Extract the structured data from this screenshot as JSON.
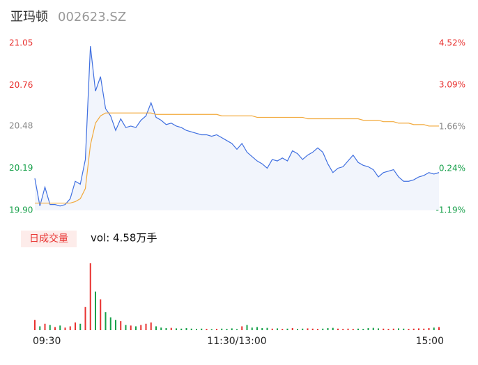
{
  "header": {
    "name": "亚玛顿",
    "code": "002623.SZ"
  },
  "chart_data": [
    {
      "type": "line",
      "x": [
        0,
        3,
        6,
        9,
        12,
        15,
        18,
        21,
        24,
        27,
        30,
        33,
        36,
        39,
        42,
        45,
        48,
        51,
        54,
        57,
        60,
        63,
        66,
        69,
        72,
        75,
        78,
        81,
        84,
        87,
        90,
        93,
        96,
        99,
        102,
        105,
        108,
        111,
        114,
        117,
        120,
        123,
        126,
        129,
        132,
        135,
        138,
        141,
        144,
        147,
        150,
        153,
        156,
        159,
        162,
        165,
        168,
        171,
        174,
        177,
        180,
        183,
        186,
        189,
        192,
        195,
        198,
        201,
        204,
        207,
        210,
        213,
        216,
        219,
        222,
        225,
        228,
        231,
        234,
        237,
        240
      ],
      "series": [
        {
          "color": "#3f6fe0",
          "values": [
            20.12,
            19.93,
            20.06,
            19.94,
            19.94,
            19.93,
            19.94,
            19.98,
            20.1,
            20.08,
            20.25,
            21.03,
            20.72,
            20.82,
            20.6,
            20.55,
            20.45,
            20.53,
            20.47,
            20.48,
            20.47,
            20.52,
            20.55,
            20.64,
            20.54,
            20.52,
            20.49,
            20.5,
            20.48,
            20.47,
            20.45,
            20.44,
            20.43,
            20.42,
            20.42,
            20.41,
            20.42,
            20.4,
            20.38,
            20.36,
            20.32,
            20.36,
            20.3,
            20.27,
            20.24,
            20.22,
            20.19,
            20.25,
            20.24,
            20.26,
            20.24,
            20.31,
            20.29,
            20.25,
            20.28,
            20.3,
            20.33,
            20.3,
            20.22,
            20.16,
            20.19,
            20.2,
            20.24,
            20.28,
            20.23,
            20.21,
            20.2,
            20.18,
            20.13,
            20.16,
            20.17,
            20.18,
            20.13,
            20.1,
            20.1,
            20.11,
            20.13,
            20.14,
            20.16,
            20.15,
            20.16
          ]
        },
        {
          "color": "#f2a93b",
          "values": [
            19.95,
            19.95,
            19.95,
            19.95,
            19.95,
            19.95,
            19.95,
            19.95,
            19.96,
            19.98,
            20.05,
            20.35,
            20.5,
            20.55,
            20.57,
            20.57,
            20.57,
            20.57,
            20.57,
            20.57,
            20.57,
            20.57,
            20.57,
            20.57,
            20.56,
            20.56,
            20.56,
            20.56,
            20.56,
            20.56,
            20.56,
            20.56,
            20.56,
            20.56,
            20.56,
            20.56,
            20.56,
            20.55,
            20.55,
            20.55,
            20.55,
            20.55,
            20.55,
            20.55,
            20.54,
            20.54,
            20.54,
            20.54,
            20.54,
            20.54,
            20.54,
            20.54,
            20.54,
            20.54,
            20.53,
            20.53,
            20.53,
            20.53,
            20.53,
            20.53,
            20.53,
            20.53,
            20.53,
            20.53,
            20.53,
            20.52,
            20.52,
            20.52,
            20.52,
            20.51,
            20.51,
            20.51,
            20.5,
            20.5,
            20.5,
            20.49,
            20.49,
            20.49,
            20.48,
            20.48,
            20.48
          ]
        }
      ],
      "fill": "#f2f5fc",
      "xlim": [
        0,
        240
      ],
      "ylim": [
        19.9,
        21.05
      ],
      "yticks": [
        {
          "value": 21.05,
          "label": "21.05"
        },
        {
          "value": 20.76,
          "label": "20.76"
        },
        {
          "value": 20.48,
          "label": "20.48"
        },
        {
          "value": 20.19,
          "label": "20.19"
        },
        {
          "value": 19.9,
          "label": "19.90"
        }
      ],
      "ytick_colors": [
        "#e8312f",
        "#e8312f",
        "#888888",
        "#17a04a",
        "#17a04a"
      ],
      "y2lim": [
        -1.19,
        4.52
      ],
      "y2ticks": [
        {
          "value": 4.52,
          "label": "4.52%"
        },
        {
          "value": 3.09,
          "label": "3.09%"
        },
        {
          "value": 1.66,
          "label": "1.66%"
        },
        {
          "value": 0.24,
          "label": "0.24%"
        },
        {
          "value": -1.19,
          "label": "-1.19%"
        }
      ],
      "y2tick_colors": [
        "#e8312f",
        "#e8312f",
        "#888888",
        "#17a04a",
        "#17a04a"
      ]
    },
    {
      "type": "bar",
      "button": "日成交量",
      "label": "vol: 4.58万手",
      "x": [
        0,
        3,
        6,
        9,
        12,
        15,
        18,
        21,
        24,
        27,
        30,
        33,
        36,
        39,
        42,
        45,
        48,
        51,
        54,
        57,
        60,
        63,
        66,
        69,
        72,
        75,
        78,
        81,
        84,
        87,
        90,
        93,
        96,
        99,
        102,
        105,
        108,
        111,
        114,
        117,
        120,
        123,
        126,
        129,
        132,
        135,
        138,
        141,
        144,
        147,
        150,
        153,
        156,
        159,
        162,
        165,
        168,
        171,
        174,
        177,
        180,
        183,
        186,
        189,
        192,
        195,
        198,
        201,
        204,
        207,
        210,
        213,
        216,
        219,
        222,
        225,
        228,
        231,
        234,
        237,
        240
      ],
      "values": [
        400,
        150,
        250,
        200,
        120,
        180,
        100,
        150,
        300,
        250,
        900,
        2600,
        1500,
        1200,
        700,
        500,
        400,
        350,
        200,
        180,
        150,
        200,
        250,
        300,
        150,
        100,
        80,
        90,
        70,
        60,
        80,
        60,
        50,
        60,
        50,
        40,
        50,
        60,
        50,
        70,
        40,
        150,
        200,
        100,
        120,
        80,
        90,
        60,
        70,
        50,
        60,
        80,
        50,
        60,
        70,
        60,
        50,
        60,
        80,
        90,
        60,
        50,
        60,
        50,
        60,
        50,
        80,
        90,
        70,
        60,
        50,
        60,
        70,
        60,
        50,
        60,
        70,
        60,
        80,
        100,
        120
      ],
      "up_color": "#e8312f",
      "down_color": "#17a04a",
      "xlim": [
        0,
        240
      ],
      "xticks": [
        {
          "value": 0,
          "label": "09:30"
        },
        {
          "value": 120,
          "label": "11:30/13:00"
        },
        {
          "value": 240,
          "label": "15:00"
        }
      ]
    }
  ]
}
